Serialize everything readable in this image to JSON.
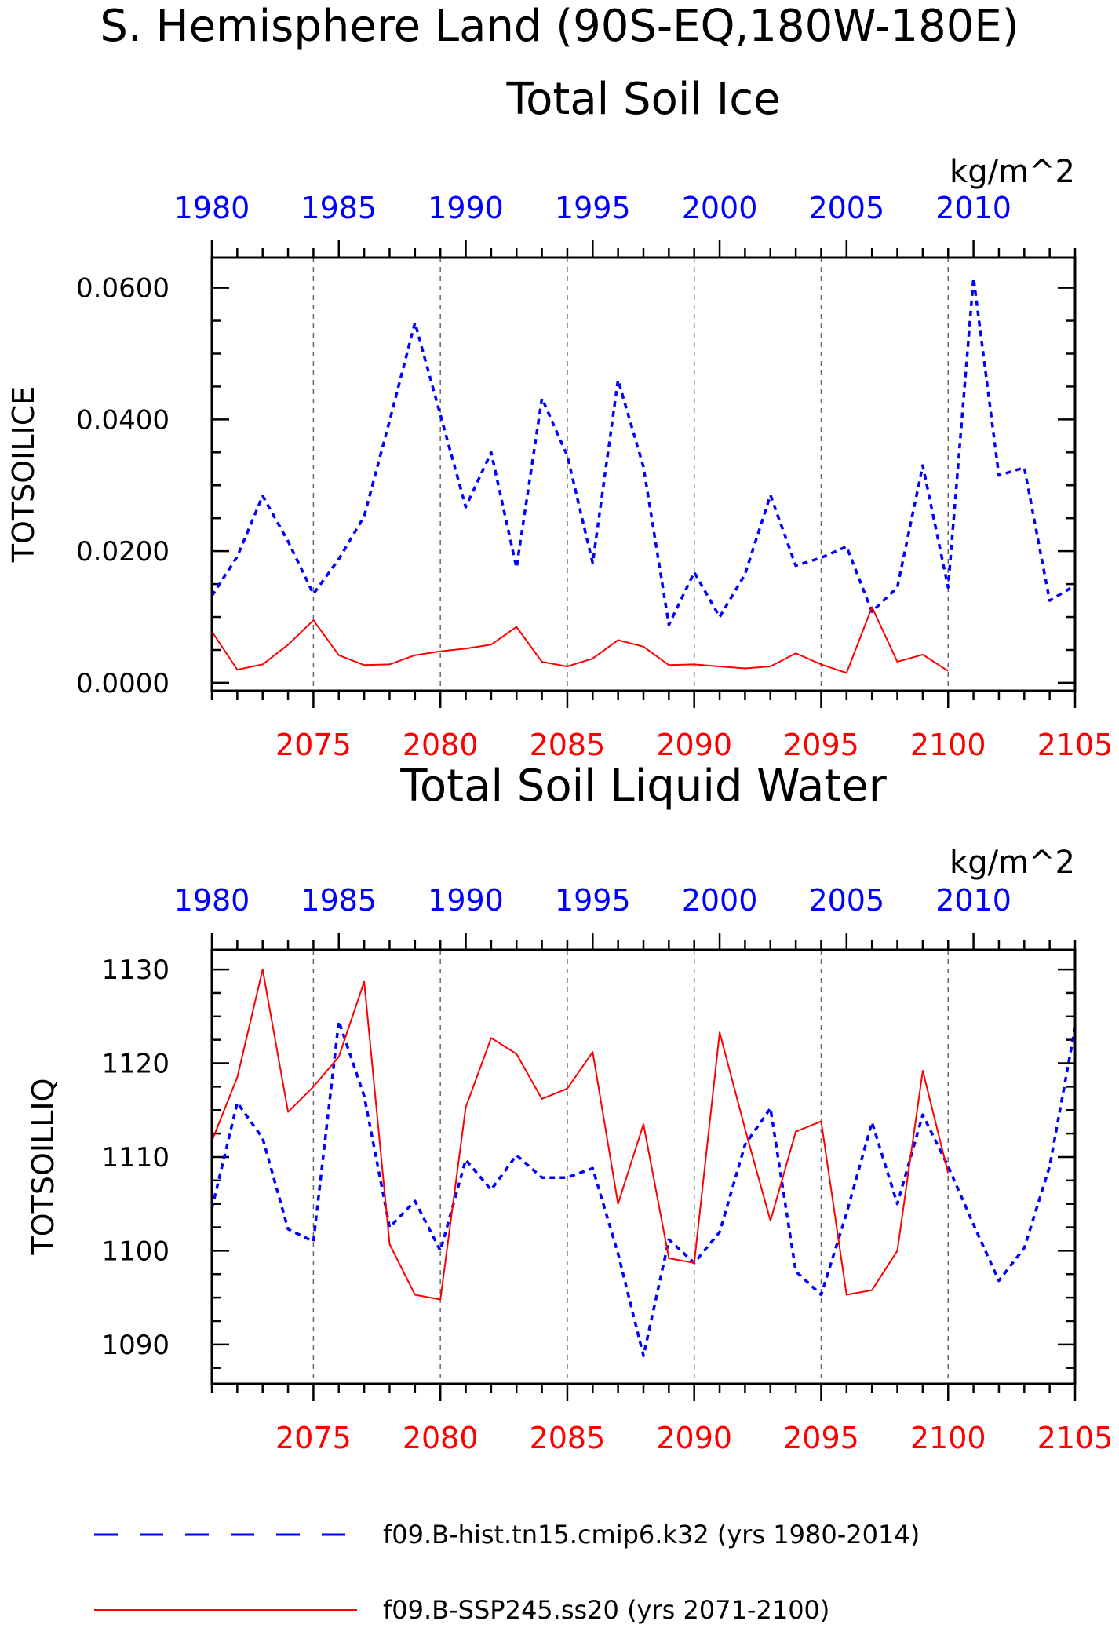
{
  "figure": {
    "title_line1": "S. Hemisphere Land (90S-EQ,180W-180E)",
    "colors": {
      "hist": "#0000ff",
      "ssp": "#ff0000",
      "axis": "#000000",
      "grid": "#666666"
    }
  },
  "legend": {
    "hist_label": "f09.B-hist.tn15.cmip6.k32 (yrs 1980-2014)",
    "ssp_label": "f09.B-SSP245.ss20 (yrs 2071-2100)"
  },
  "chart_data": [
    {
      "type": "line",
      "title": "Total Soil Ice",
      "ylabel": "TOTSOILICE",
      "units": "kg/m^2",
      "ylim": [
        -0.0012,
        0.0646
      ],
      "yticks": [
        0.0,
        0.02,
        0.04,
        0.06
      ],
      "ytick_labels": [
        "0.0000",
        "0.0200",
        "0.0400",
        "0.0600"
      ],
      "x_bottom": {
        "range": [
          2071,
          2105
        ],
        "tick_labels": [
          "2075",
          "2080",
          "2085",
          "2090",
          "2095",
          "2100",
          "2105"
        ]
      },
      "x_top": {
        "range": [
          1980,
          2014
        ],
        "tick_labels": [
          "1980",
          "1985",
          "1990",
          "1995",
          "2000",
          "2005",
          "2010"
        ]
      },
      "grid": "vertical dashed at major bottom ticks",
      "series": [
        {
          "key": "hist",
          "axis": "top",
          "style": "dashed",
          "x_start": 1980,
          "values": [
            0.0132,
            0.0192,
            0.0284,
            0.0215,
            0.0135,
            0.0188,
            0.0253,
            0.0398,
            0.0547,
            0.0407,
            0.0267,
            0.035,
            0.0175,
            0.0432,
            0.0345,
            0.0182,
            0.046,
            0.0328,
            0.0088,
            0.0168,
            0.01,
            0.0165,
            0.0285,
            0.0178,
            0.019,
            0.0207,
            0.0108,
            0.0145,
            0.033,
            0.0145,
            0.0615,
            0.0315,
            0.0327,
            0.0125,
            0.0148
          ]
        },
        {
          "key": "ssp",
          "axis": "bottom",
          "style": "solid",
          "x_start": 2071,
          "values": [
            0.0078,
            0.002,
            0.0028,
            0.0058,
            0.0095,
            0.0042,
            0.0027,
            0.0028,
            0.0042,
            0.0048,
            0.0052,
            0.0058,
            0.0085,
            0.0032,
            0.0025,
            0.0037,
            0.0065,
            0.0055,
            0.0027,
            0.0028,
            0.0025,
            0.0022,
            0.0025,
            0.0045,
            0.0028,
            0.0015,
            0.0115,
            0.0032,
            0.0043,
            0.0018
          ]
        }
      ]
    },
    {
      "type": "line",
      "title": "Total Soil Liquid Water",
      "ylabel": "TOTSOILLIQ",
      "units": "kg/m^2",
      "ylim": [
        1085.8,
        1132.1
      ],
      "yticks": [
        1090,
        1100,
        1110,
        1120,
        1130
      ],
      "ytick_labels": [
        "1090",
        "1100",
        "1110",
        "1120",
        "1130"
      ],
      "x_bottom": {
        "range": [
          2071,
          2105
        ],
        "tick_labels": [
          "2075",
          "2080",
          "2085",
          "2090",
          "2095",
          "2100",
          "2105"
        ]
      },
      "x_top": {
        "range": [
          1980,
          2014
        ],
        "tick_labels": [
          "1980",
          "1985",
          "1990",
          "1995",
          "2000",
          "2005",
          "2010"
        ]
      },
      "grid": "vertical dashed at major bottom ticks",
      "series": [
        {
          "key": "hist",
          "axis": "top",
          "style": "dashed",
          "x_start": 1980,
          "values": [
            1104.5,
            1115.8,
            1112.0,
            1102.3,
            1101.0,
            1124.5,
            1116.5,
            1102.5,
            1105.3,
            1100.0,
            1109.7,
            1106.5,
            1110.2,
            1107.8,
            1107.8,
            1108.8,
            1099.7,
            1088.8,
            1101.2,
            1098.7,
            1102.0,
            1111.3,
            1115.2,
            1097.8,
            1095.3,
            1104.0,
            1113.7,
            1105.0,
            1114.5,
            1109.0,
            1102.8,
            1096.8,
            1100.3,
            1109.0,
            1123.8
          ]
        },
        {
          "key": "ssp",
          "axis": "bottom",
          "style": "solid",
          "x_start": 2071,
          "values": [
            1111.7,
            1118.5,
            1130.0,
            1114.8,
            1117.5,
            1120.7,
            1128.7,
            1100.7,
            1095.3,
            1094.8,
            1115.3,
            1122.7,
            1121.0,
            1116.2,
            1117.3,
            1121.2,
            1105.0,
            1113.5,
            1099.2,
            1098.7,
            1123.3,
            1113.0,
            1103.2,
            1112.7,
            1113.8,
            1095.3,
            1095.8,
            1100.0,
            1119.2,
            1108.3
          ]
        }
      ]
    }
  ]
}
